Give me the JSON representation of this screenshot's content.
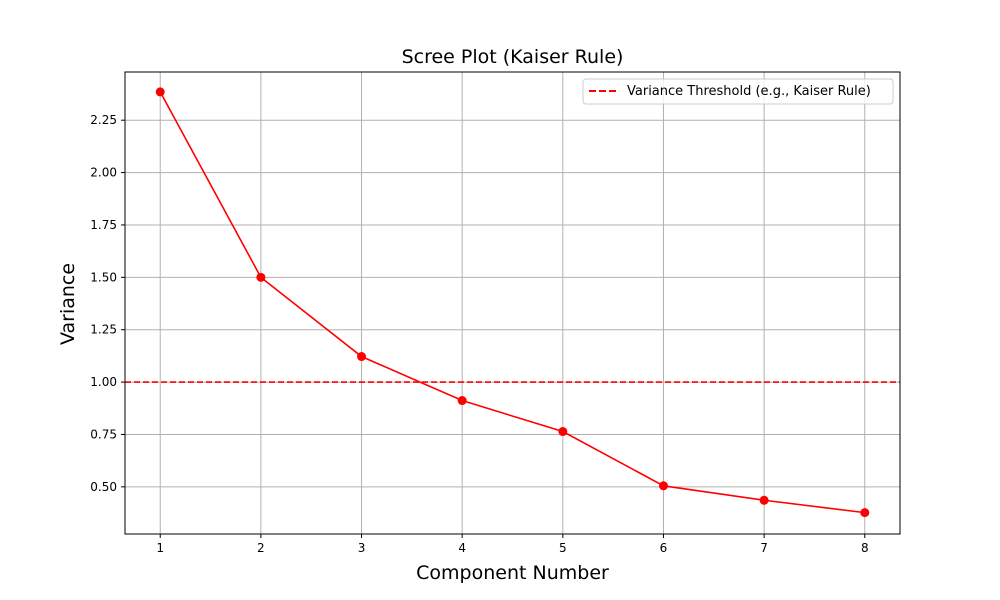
{
  "chart_data": {
    "type": "line",
    "title": "Scree Plot (Kaiser Rule)",
    "xlabel": "Component Number",
    "ylabel": "Variance",
    "x": [
      1,
      2,
      3,
      4,
      5,
      6,
      7,
      8
    ],
    "x_ticks": [
      "1",
      "2",
      "3",
      "4",
      "5",
      "6",
      "7",
      "8"
    ],
    "y_ticks": [
      "0.50",
      "0.75",
      "1.00",
      "1.25",
      "1.50",
      "1.75",
      "2.00",
      "2.25"
    ],
    "y_tick_values": [
      0.5,
      0.75,
      1.0,
      1.25,
      1.5,
      1.75,
      2.0,
      2.25
    ],
    "xlim": [
      0.65,
      8.35
    ],
    "ylim": [
      0.275,
      2.48
    ],
    "grid": true,
    "series": [
      {
        "values": [
          2.385,
          1.5,
          1.122,
          0.912,
          0.764,
          0.505,
          0.436,
          0.377
        ],
        "color": "#ff0000",
        "marker": "circle"
      }
    ],
    "threshold": {
      "y": 1.0,
      "label": "Variance Threshold (e.g., Kaiser Rule)",
      "color": "#ff0000",
      "style": "dashed"
    },
    "legend_position": "top-right"
  }
}
